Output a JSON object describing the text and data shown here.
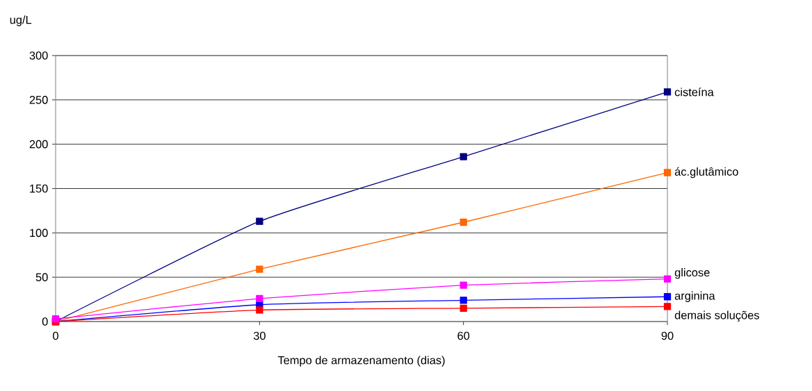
{
  "chart_data": {
    "type": "line",
    "ylabel": "ug/L",
    "xlabel": "Tempo de armazenamento (dias)",
    "x": [
      0,
      30,
      60,
      90
    ],
    "series": [
      {
        "name": "cisteína",
        "color": "#000080",
        "values": [
          0,
          113,
          186,
          259
        ]
      },
      {
        "name": "ác.glutâmico",
        "color": "#ff6600",
        "values": [
          0,
          59,
          112,
          168
        ]
      },
      {
        "name": "glicose",
        "color": "#ff00ff",
        "values": [
          3,
          26,
          41,
          48
        ]
      },
      {
        "name": "arginina",
        "color": "#0000ff",
        "values": [
          0,
          19,
          24,
          28
        ]
      },
      {
        "name": "demais soluções",
        "color": "#ff0000",
        "values": [
          0,
          13,
          15,
          17
        ]
      }
    ],
    "xlim": [
      0,
      90
    ],
    "ylim": [
      0,
      300
    ],
    "xticks": [
      0,
      30,
      60,
      90
    ],
    "yticks": [
      0,
      50,
      100,
      150,
      200,
      250,
      300
    ],
    "grid": "y",
    "marker": "square",
    "line_style": "solid"
  }
}
